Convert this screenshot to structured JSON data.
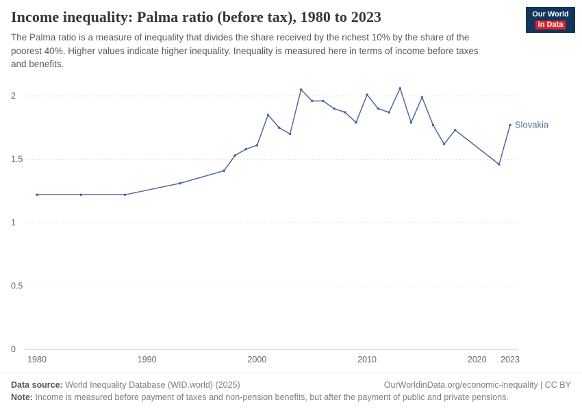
{
  "header": {
    "title": "Income inequality: Palma ratio (before tax), 1980 to 2023",
    "subtitle": "The Palma ratio is a measure of inequality that divides the share received by the richest 10% by the share of the poorest 40%. Higher values indicate higher inequality. Inequality is measured here in terms of income before taxes and benefits.",
    "logo": {
      "line1": "Our World",
      "line2": "in Data",
      "bg_color": "#12355b",
      "accent_color": "#e0232e"
    }
  },
  "chart_data": {
    "type": "line",
    "title": "Income inequality: Palma ratio (before tax), 1980 to 2023",
    "xlabel": "",
    "ylabel": "",
    "xlim": [
      1980,
      2023
    ],
    "ylim": [
      0,
      2.1
    ],
    "xticks": [
      1980,
      1990,
      2000,
      2010,
      2020,
      2023
    ],
    "yticks": [
      0,
      0.5,
      1,
      1.5,
      2
    ],
    "grid": "horizontal-dashed",
    "legend_position": "end-of-line-label",
    "series": [
      {
        "name": "Slovakia",
        "color": "#4c6a9c",
        "points": [
          [
            1980,
            1.22
          ],
          [
            1984,
            1.22
          ],
          [
            1988,
            1.22
          ],
          [
            1993,
            1.31
          ],
          [
            1997,
            1.41
          ],
          [
            1998,
            1.53
          ],
          [
            1999,
            1.58
          ],
          [
            2000,
            1.61
          ],
          [
            2001,
            1.85
          ],
          [
            2002,
            1.75
          ],
          [
            2003,
            1.7
          ],
          [
            2004,
            2.05
          ],
          [
            2005,
            1.96
          ],
          [
            2006,
            1.96
          ],
          [
            2007,
            1.9
          ],
          [
            2008,
            1.87
          ],
          [
            2009,
            1.79
          ],
          [
            2010,
            2.01
          ],
          [
            2011,
            1.9
          ],
          [
            2012,
            1.87
          ],
          [
            2013,
            2.06
          ],
          [
            2014,
            1.79
          ],
          [
            2015,
            1.99
          ],
          [
            2016,
            1.77
          ],
          [
            2017,
            1.62
          ],
          [
            2018,
            1.73
          ],
          [
            2022,
            1.46
          ],
          [
            2023,
            1.77
          ]
        ]
      }
    ]
  },
  "footer": {
    "datasource_label": "Data source:",
    "datasource_text": " World Inequality Database (WID.world) (2025)",
    "link_text": "OurWorldinData.org/economic-inequality | CC BY",
    "note_label": "Note:",
    "note_text": " Income is measured before payment of taxes and non-pension benefits, but after the payment of public and private pensions."
  }
}
